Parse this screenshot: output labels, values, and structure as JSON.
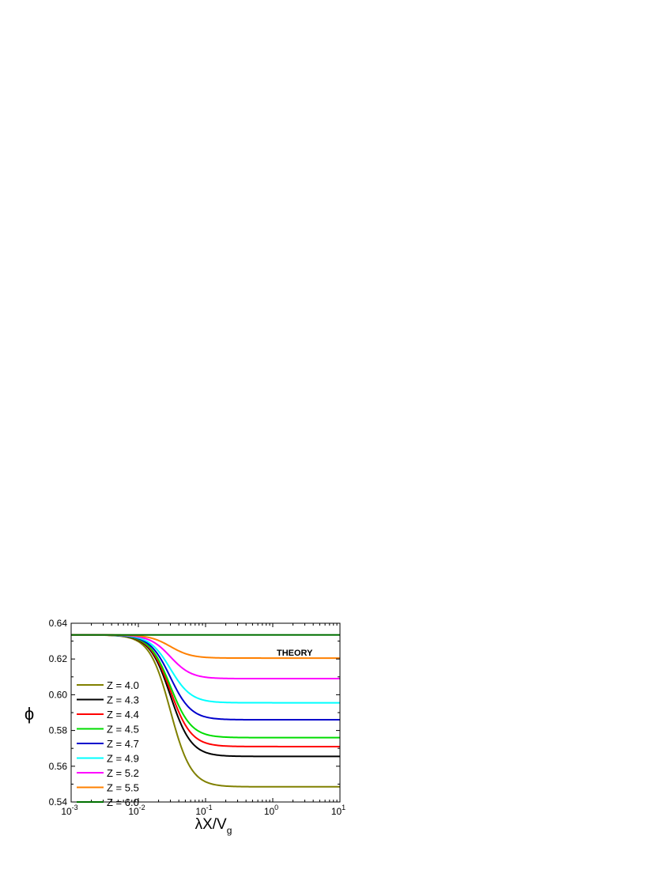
{
  "chart_data": {
    "type": "line",
    "title": "",
    "annotation": "THEORY",
    "xlabel": {
      "base": "λX/V",
      "subscript": "g"
    },
    "ylabel": "ϕ",
    "xscale": "log",
    "xlim": [
      0.001,
      10
    ],
    "ylim": [
      0.54,
      0.64
    ],
    "x_ticks": [
      {
        "base": "10",
        "exp": "-3"
      },
      {
        "base": "10",
        "exp": "-2"
      },
      {
        "base": "10",
        "exp": "-1"
      },
      {
        "base": "10",
        "exp": "0"
      },
      {
        "base": "10",
        "exp": "1"
      }
    ],
    "y_ticks": [
      "0.54",
      "0.56",
      "0.58",
      "0.60",
      "0.62",
      "0.64"
    ],
    "legend_position": "left",
    "series": [
      {
        "name": "Z = 4.0",
        "color": "#808000",
        "start": 0.6335,
        "end": 0.5485
      },
      {
        "name": "Z = 4.3",
        "color": "#000000",
        "start": 0.6335,
        "end": 0.5655
      },
      {
        "name": "Z = 4.4",
        "color": "#ff0000",
        "start": 0.6335,
        "end": 0.571
      },
      {
        "name": "Z = 4.5",
        "color": "#00dd00",
        "start": 0.6335,
        "end": 0.576
      },
      {
        "name": "Z = 4.7",
        "color": "#0000cc",
        "start": 0.6335,
        "end": 0.586
      },
      {
        "name": "Z = 4.9",
        "color": "#00ffff",
        "start": 0.6335,
        "end": 0.5955
      },
      {
        "name": "Z = 5.2",
        "color": "#ff00ff",
        "start": 0.6335,
        "end": 0.609
      },
      {
        "name": "Z = 5.5",
        "color": "#ff8000",
        "start": 0.6335,
        "end": 0.6205
      },
      {
        "name": "Z = 6.0",
        "color": "#007000",
        "start": 0.6335,
        "end": 0.6335
      }
    ]
  }
}
